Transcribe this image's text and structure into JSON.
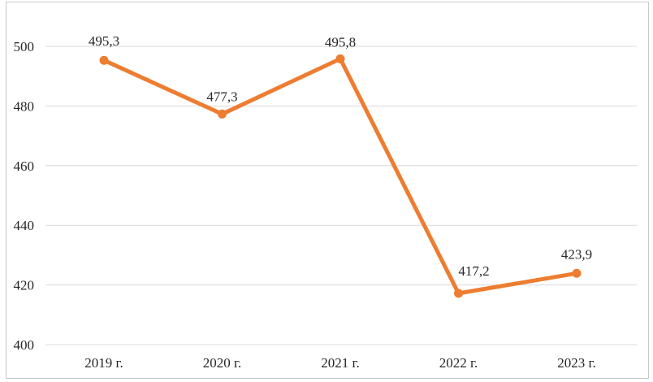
{
  "chart_data": {
    "type": "line",
    "title": "",
    "xlabel": "",
    "ylabel": "",
    "categories": [
      "2019 г.",
      "2020 г.",
      "2021 г.",
      "2022 г.",
      "2023 г."
    ],
    "series": [
      {
        "name": "series-1",
        "values": [
          495.3,
          477.3,
          495.8,
          417.2,
          423.9
        ],
        "data_labels": [
          "495,3",
          "477,3",
          "495,8",
          "417,2",
          "423,9"
        ]
      }
    ],
    "y_ticks": [
      400,
      420,
      440,
      460,
      480,
      500
    ],
    "y_tick_labels": [
      "400",
      "420",
      "440",
      "460",
      "480",
      "500"
    ],
    "ylim": [
      400,
      500
    ],
    "legend_position": "none",
    "grid": "horizontal",
    "marker": "circle",
    "colors": {
      "line": "#ED7D31",
      "marker": "#ED7D31",
      "gridline": "#D9D9D9",
      "text": "#262626",
      "frame": "#C8C8C8",
      "background": "#FFFFFF"
    },
    "layout_hints": {
      "label_dx": [
        0,
        0,
        0,
        19,
        0
      ],
      "label_dy": [
        -18,
        -16,
        -15,
        -22,
        -18
      ],
      "legend": "off"
    }
  }
}
